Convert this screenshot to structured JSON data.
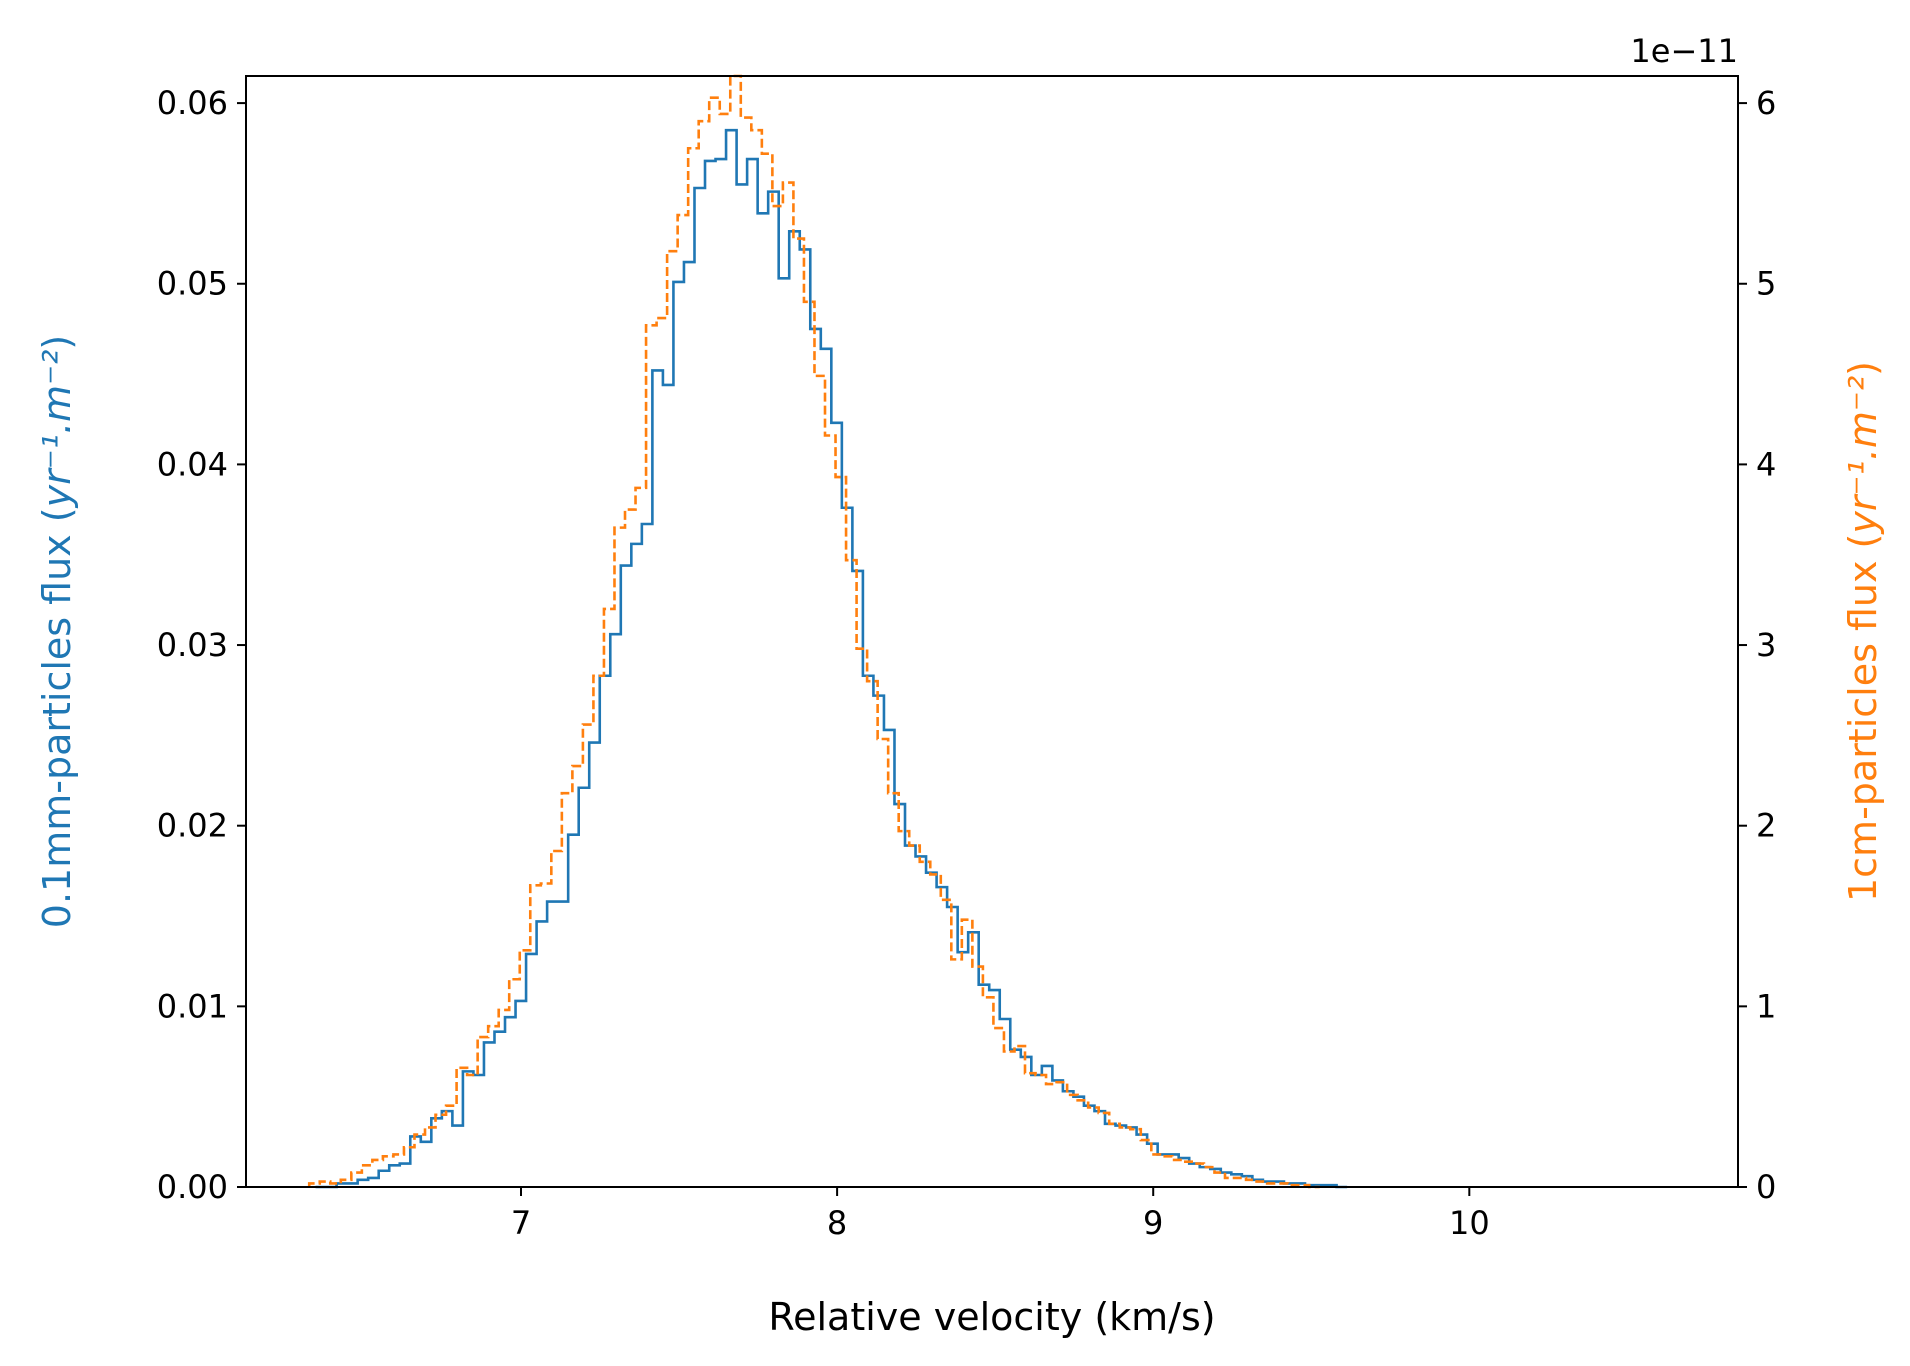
{
  "chart_data": {
    "type": "histogram",
    "xlabel": "Relative velocity (km/s)",
    "xlim": [
      6.13,
      10.85
    ],
    "x_ticks": [
      {
        "value": 7,
        "label": "7"
      },
      {
        "value": 8,
        "label": "8"
      },
      {
        "value": 9,
        "label": "9"
      },
      {
        "value": 10,
        "label": "10"
      }
    ],
    "y_left": {
      "label_prefix": "0.1mm-particles flux (",
      "label_math": "yr⁻¹.m⁻²",
      "label_suffix": ")",
      "ylim": [
        0,
        0.0615
      ],
      "ticks": [
        {
          "value": 0.0,
          "label": "0.00"
        },
        {
          "value": 0.01,
          "label": "0.01"
        },
        {
          "value": 0.02,
          "label": "0.02"
        },
        {
          "value": 0.03,
          "label": "0.03"
        },
        {
          "value": 0.04,
          "label": "0.04"
        },
        {
          "value": 0.05,
          "label": "0.05"
        },
        {
          "value": 0.06,
          "label": "0.06"
        }
      ]
    },
    "y_right": {
      "label_prefix": "1cm-particles flux (",
      "label_math": "yr⁻¹.m⁻²",
      "label_suffix": ")",
      "offset_text": "1e−11",
      "ylim": [
        0,
        6.15
      ],
      "ticks": [
        {
          "value": 0,
          "label": "0"
        },
        {
          "value": 1,
          "label": "1"
        },
        {
          "value": 2,
          "label": "2"
        },
        {
          "value": 3,
          "label": "3"
        },
        {
          "value": 4,
          "label": "4"
        },
        {
          "value": 5,
          "label": "5"
        },
        {
          "value": 6,
          "label": "6"
        }
      ]
    },
    "series": [
      {
        "name": "0.1mm-particles",
        "axis": "left",
        "color": "#1f77b4",
        "style": "solid",
        "x_start": 6.35,
        "bin_width": 0.0333,
        "values": [
          0,
          0,
          0.0002,
          0.0002,
          0.0004,
          0.0005,
          0.0009,
          0.0012,
          0.0013,
          0.0028,
          0.0025,
          0.0038,
          0.0042,
          0.0034,
          0.0064,
          0.0062,
          0.008,
          0.0086,
          0.0094,
          0.0103,
          0.0129,
          0.0147,
          0.0158,
          0.0158,
          0.0195,
          0.0221,
          0.0246,
          0.0283,
          0.0306,
          0.0344,
          0.0356,
          0.0367,
          0.0452,
          0.0444,
          0.0501,
          0.0512,
          0.0553,
          0.0568,
          0.0569,
          0.0585,
          0.0555,
          0.0569,
          0.0539,
          0.0551,
          0.0503,
          0.0529,
          0.0519,
          0.0475,
          0.0464,
          0.0423,
          0.0376,
          0.0341,
          0.0283,
          0.0272,
          0.0253,
          0.0212,
          0.0189,
          0.0183,
          0.0174,
          0.0166,
          0.0155,
          0.013,
          0.0141,
          0.0112,
          0.0109,
          0.0093,
          0.0076,
          0.0072,
          0.0062,
          0.0067,
          0.0059,
          0.0053,
          0.005,
          0.0045,
          0.0042,
          0.0035,
          0.0034,
          0.0033,
          0.0029,
          0.0024,
          0.0018,
          0.0018,
          0.0016,
          0.0013,
          0.0011,
          0.001,
          0.0008,
          0.0007,
          0.0006,
          0.0004,
          0.0003,
          0.0003,
          0.0002,
          0.0002,
          0.0001,
          0.0001,
          0.0001,
          0
        ]
      },
      {
        "name": "1cm-particles",
        "axis": "right",
        "color": "#ff7f0e",
        "style": "dashed",
        "x_start": 6.33,
        "bin_width": 0.0333,
        "values": [
          0.02,
          0.03,
          0.02,
          0.04,
          0.08,
          0.12,
          0.15,
          0.17,
          0.18,
          0.22,
          0.29,
          0.33,
          0.4,
          0.45,
          0.66,
          0.62,
          0.83,
          0.89,
          0.98,
          1.15,
          1.31,
          1.67,
          1.68,
          1.86,
          2.18,
          2.33,
          2.56,
          2.83,
          3.2,
          3.65,
          3.75,
          3.87,
          4.77,
          4.81,
          5.18,
          5.38,
          5.75,
          5.9,
          6.03,
          5.94,
          6.15,
          5.92,
          5.85,
          5.72,
          5.43,
          5.56,
          5.25,
          4.9,
          4.49,
          4.16,
          3.93,
          3.47,
          2.98,
          2.8,
          2.48,
          2.18,
          1.97,
          1.89,
          1.8,
          1.73,
          1.59,
          1.26,
          1.48,
          1.22,
          1.05,
          0.88,
          0.75,
          0.78,
          0.63,
          0.62,
          0.57,
          0.58,
          0.51,
          0.48,
          0.44,
          0.41,
          0.35,
          0.33,
          0.32,
          0.26,
          0.18,
          0.17,
          0.15,
          0.14,
          0.13,
          0.11,
          0.08,
          0.05,
          0.05,
          0.04,
          0.03,
          0.02,
          0.02,
          0.01,
          0.01,
          0.0
        ]
      }
    ]
  }
}
